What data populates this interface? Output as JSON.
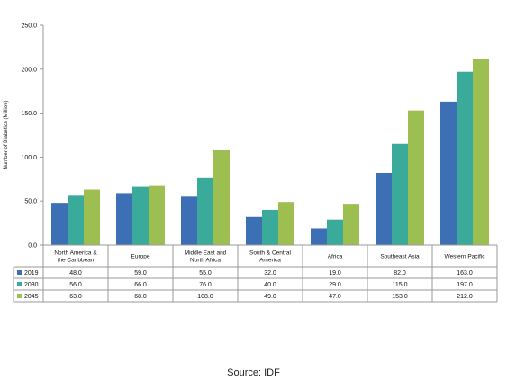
{
  "chart_data": {
    "type": "bar",
    "title": "",
    "xlabel": "",
    "ylabel": "Number of Diabetics (Million)",
    "ylim": [
      0,
      250
    ],
    "yticks": [
      "0.0",
      "50.0",
      "100.0",
      "150.0",
      "200.0",
      "250.0"
    ],
    "categories": [
      [
        "North America &",
        "the Caribbean"
      ],
      [
        "Europe"
      ],
      [
        "Middle East and",
        "North Africa"
      ],
      [
        "South & Central",
        "America"
      ],
      [
        "Africa"
      ],
      [
        "Southeast Asia"
      ],
      [
        "Western Pacific"
      ]
    ],
    "series": [
      {
        "name": "2019",
        "color": "#3d6fb5",
        "values": [
          48,
          59,
          55,
          32,
          19,
          82,
          163
        ],
        "labels": [
          "48.0",
          "59.0",
          "55.0",
          "32.0",
          "19.0",
          "82.0",
          "163.0"
        ]
      },
      {
        "name": "2030",
        "color": "#3aab9b",
        "values": [
          56,
          66,
          76,
          40,
          29,
          115,
          197
        ],
        "labels": [
          "56.0",
          "66.0",
          "76.0",
          "40.0",
          "29.0",
          "115.0",
          "197.0"
        ]
      },
      {
        "name": "2045",
        "color": "#9dbf52",
        "values": [
          63,
          68,
          108,
          49,
          47,
          153,
          212
        ],
        "labels": [
          "63.0",
          "68.0",
          "108.0",
          "49.0",
          "47.0",
          "153.0",
          "212.0"
        ]
      }
    ],
    "grid": false,
    "legend": "data-table-left"
  },
  "source": "Source: IDF"
}
